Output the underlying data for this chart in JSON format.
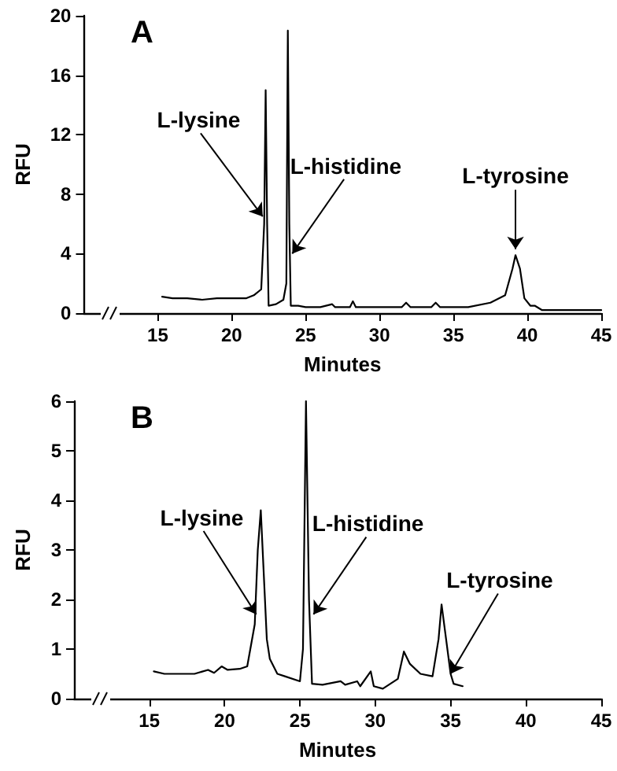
{
  "chart_data": [
    {
      "type": "line",
      "title": "A",
      "xlabel": "Minutes",
      "ylabel": "RFU",
      "xlim": [
        10,
        45
      ],
      "xticks": [
        15,
        20,
        25,
        30,
        35,
        40,
        45
      ],
      "ylim": [
        0,
        20
      ],
      "yticks": [
        0,
        4,
        8,
        12,
        16,
        20
      ],
      "grid": false,
      "marker": "none",
      "line_style": "solid",
      "annotations": [
        {
          "text": "L-lysine",
          "x": 22.1,
          "y": 6.5
        },
        {
          "text": "L-histidine",
          "x": 24.1,
          "y": 4
        },
        {
          "text": "L-tyrosine",
          "x": 39.2,
          "y": 4.3
        }
      ],
      "series": [
        {
          "color": "#000000",
          "x": [
            15.3,
            16,
            17,
            18,
            19,
            20,
            21,
            21.5,
            22,
            22.2,
            22.3,
            22.4,
            22.5,
            23,
            23.5,
            23.7,
            23.8,
            23.9,
            24.0,
            24.5,
            25,
            26,
            26.8,
            27,
            28,
            28.2,
            28.4,
            30,
            31.5,
            31.8,
            32.1,
            33.5,
            33.8,
            34.1,
            36,
            37.5,
            38.5,
            39,
            39.2,
            39.5,
            39.8,
            40.2,
            40.5,
            41,
            42,
            45
          ],
          "values": [
            1.1,
            1.0,
            1.0,
            0.9,
            1.0,
            1.0,
            1.0,
            1.2,
            1.6,
            6,
            15,
            6,
            0.5,
            0.6,
            0.9,
            2,
            19,
            6,
            0.5,
            0.5,
            0.4,
            0.4,
            0.6,
            0.4,
            0.4,
            0.8,
            0.4,
            0.4,
            0.4,
            0.7,
            0.4,
            0.4,
            0.7,
            0.4,
            0.4,
            0.7,
            1.2,
            3,
            3.9,
            3,
            1,
            0.5,
            0.5,
            0.2,
            0.2,
            0.2
          ]
        }
      ]
    },
    {
      "type": "line",
      "title": "B",
      "xlabel": "Minutes",
      "ylabel": "RFU",
      "xlim": [
        10,
        45
      ],
      "xticks": [
        15,
        20,
        25,
        30,
        35,
        40,
        45
      ],
      "ylim": [
        0,
        6
      ],
      "yticks": [
        0,
        1,
        2,
        3,
        4,
        5,
        6
      ],
      "grid": false,
      "marker": "none",
      "line_style": "solid",
      "annotations": [
        {
          "text": "L-lysine",
          "x": 22.1,
          "y": 1.7
        },
        {
          "text": "L-histidine",
          "x": 25.9,
          "y": 1.7
        },
        {
          "text": "L-tyrosine",
          "x": 35,
          "y": 0.5
        }
      ],
      "series": [
        {
          "color": "#000000",
          "x": [
            15.3,
            16,
            17,
            18,
            18.9,
            19.3,
            19.8,
            20.2,
            21,
            21.5,
            22,
            22.2,
            22.4,
            22.6,
            22.8,
            23,
            23.5,
            24,
            25,
            25.2,
            25.4,
            25.6,
            25.8,
            26.5,
            27.7,
            28,
            28.8,
            29,
            29.7,
            29.9,
            30.5,
            31.5,
            31.9,
            32.3,
            33,
            33.8,
            34.2,
            34.4,
            34.7,
            35,
            35.2,
            35.8
          ],
          "values": [
            0.55,
            0.5,
            0.5,
            0.5,
            0.58,
            0.52,
            0.65,
            0.58,
            0.6,
            0.65,
            1.5,
            3,
            3.8,
            2.5,
            1.2,
            0.8,
            0.5,
            0.45,
            0.35,
            1,
            6,
            2,
            0.3,
            0.28,
            0.35,
            0.28,
            0.35,
            0.25,
            0.55,
            0.25,
            0.2,
            0.4,
            0.95,
            0.7,
            0.5,
            0.45,
            1.2,
            1.9,
            1.2,
            0.5,
            0.3,
            0.25
          ]
        }
      ]
    }
  ]
}
